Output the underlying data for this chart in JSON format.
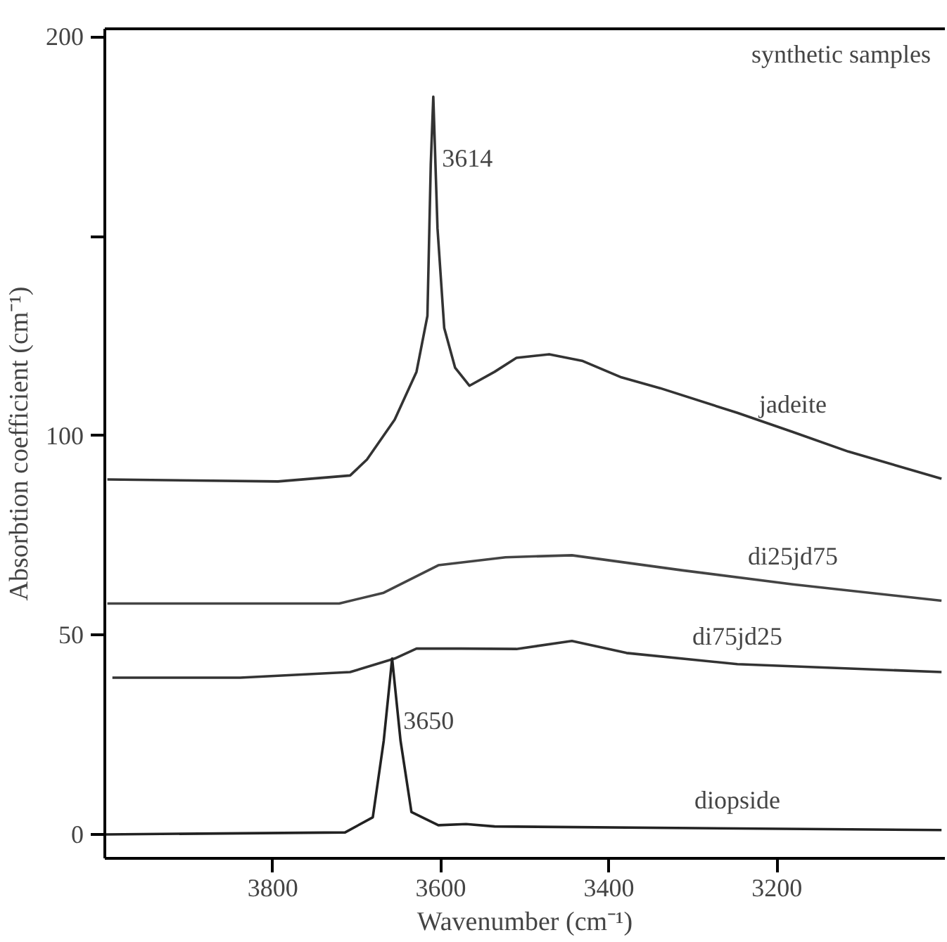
{
  "chart_data": {
    "type": "line",
    "xlabel": "Wavenumber (cm⁻¹)",
    "ylabel": "Absorbtion coefficient (cm⁻¹)",
    "xlim": [
      4000,
      3000
    ],
    "xticks": [
      3800,
      3600,
      3400,
      3200
    ],
    "ylim": [
      -6,
      202
    ],
    "yticks": [
      0,
      50,
      100,
      {
        "value": 150,
        "label": null
      },
      200
    ],
    "grid": false,
    "marker": "none",
    "line_style": "solid",
    "series": [
      {
        "name": "jadeite",
        "color": "#333333",
        "x": [
          3997,
          3794,
          3708,
          3688,
          3655,
          3629,
          3616,
          3612,
          3609,
          3604,
          3596,
          3583,
          3566,
          3536,
          3510,
          3471,
          3431,
          3385,
          3339,
          3247,
          3181,
          3115,
          3004
        ],
        "values": [
          89,
          88.5,
          90,
          94,
          104,
          116,
          130,
          168,
          185,
          152,
          127,
          117,
          112.5,
          116,
          119.5,
          120.4,
          118.7,
          114.6,
          111.9,
          105.7,
          100.9,
          96,
          89.2
        ]
      },
      {
        "name": "di25jd75",
        "color": "#444444",
        "x": [
          3997,
          3721,
          3668,
          3603,
          3523,
          3444,
          3312,
          3181,
          3004
        ],
        "values": [
          57.9,
          57.9,
          60.6,
          67.5,
          69.5,
          70,
          66.2,
          62.7,
          58.6
        ]
      },
      {
        "name": "di75jd25",
        "color": "#333333",
        "x": [
          3991,
          3839,
          3708,
          3655,
          3629,
          3576,
          3510,
          3444,
          3379,
          3247,
          3004
        ],
        "values": [
          39.3,
          39.3,
          40.7,
          44.1,
          46.6,
          46.6,
          46.5,
          48.5,
          45.5,
          42.7,
          40.7
        ]
      },
      {
        "name": "diopside",
        "color": "#222222",
        "x": [
          4000,
          3714,
          3681,
          3668,
          3658,
          3648,
          3635,
          3603,
          3570,
          3536,
          3247,
          3004
        ],
        "values": [
          0,
          0.5,
          4.3,
          23.5,
          44.1,
          23.5,
          5.6,
          2.3,
          2.6,
          2.0,
          1.5,
          1.1
        ]
      }
    ],
    "annotations": [
      "synthetic samples",
      {
        "text": "3614",
        "x": 3612,
        "y": 185
      },
      {
        "text": "3650",
        "x": 3658,
        "y": 44.1
      }
    ]
  }
}
